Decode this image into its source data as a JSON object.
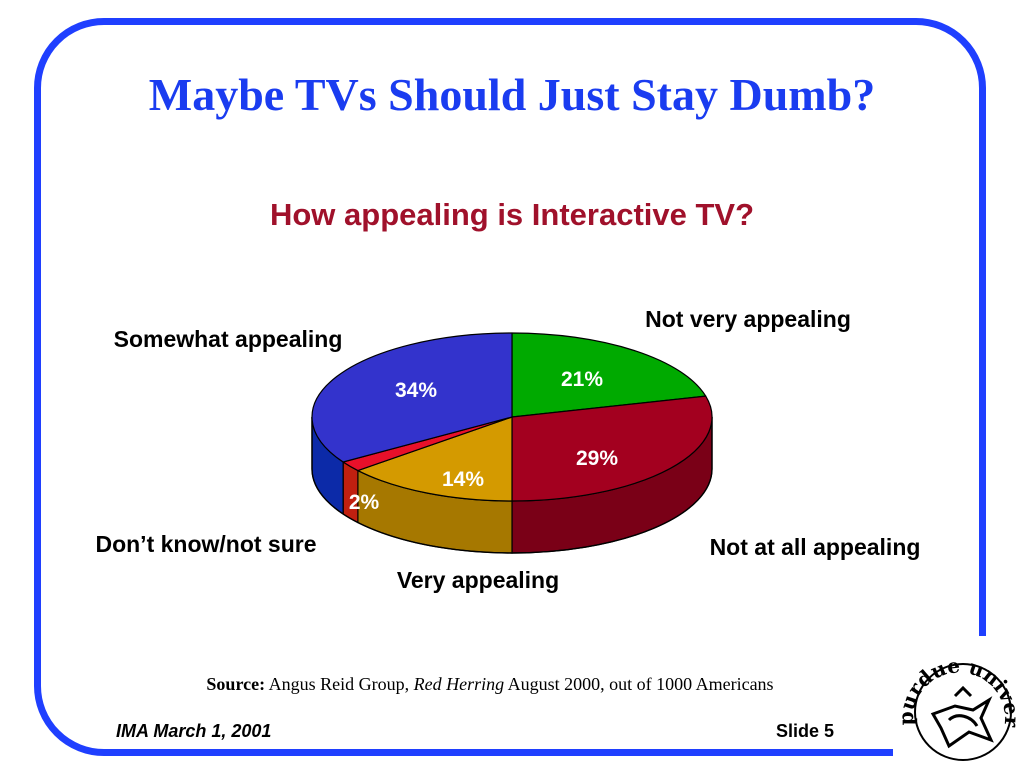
{
  "slide": {
    "title": "Maybe TVs Should Just Stay Dumb?",
    "source_label": "Source:",
    "source_text1": " Angus Reid Group, ",
    "source_italic": "Red Herring",
    "source_text2": " August 2000, out of 1000 Americans",
    "footer_left": "IMA March 1, 2001",
    "footer_right": "Slide 5",
    "logo_text": "purdue university"
  },
  "colors": {
    "frame": "#1f3fff",
    "title": "#1a3cf0",
    "subtitle": "#a0112b"
  },
  "chart_data": {
    "type": "pie",
    "title": "How appealing is Interactive TV?",
    "style": "3d",
    "slices": [
      {
        "name": "Not very appealing",
        "value": 21,
        "label": "21%",
        "color": "#00aa00",
        "side": "#007a00"
      },
      {
        "name": "Not at all appealing",
        "value": 29,
        "label": "29%",
        "color": "#a3001f",
        "side": "#7a0017"
      },
      {
        "name": "Very appealing",
        "value": 14,
        "label": "14%",
        "color": "#d49a00",
        "side": "#a67800"
      },
      {
        "name": "Don’t know/not sure",
        "value": 2,
        "label": "2%",
        "color": "#e8102a",
        "side": "#c02010"
      },
      {
        "name": "Somewhat appealing",
        "value": 34,
        "label": "34%",
        "color": "#3333cc",
        "side": "#0c2aa8"
      }
    ]
  }
}
